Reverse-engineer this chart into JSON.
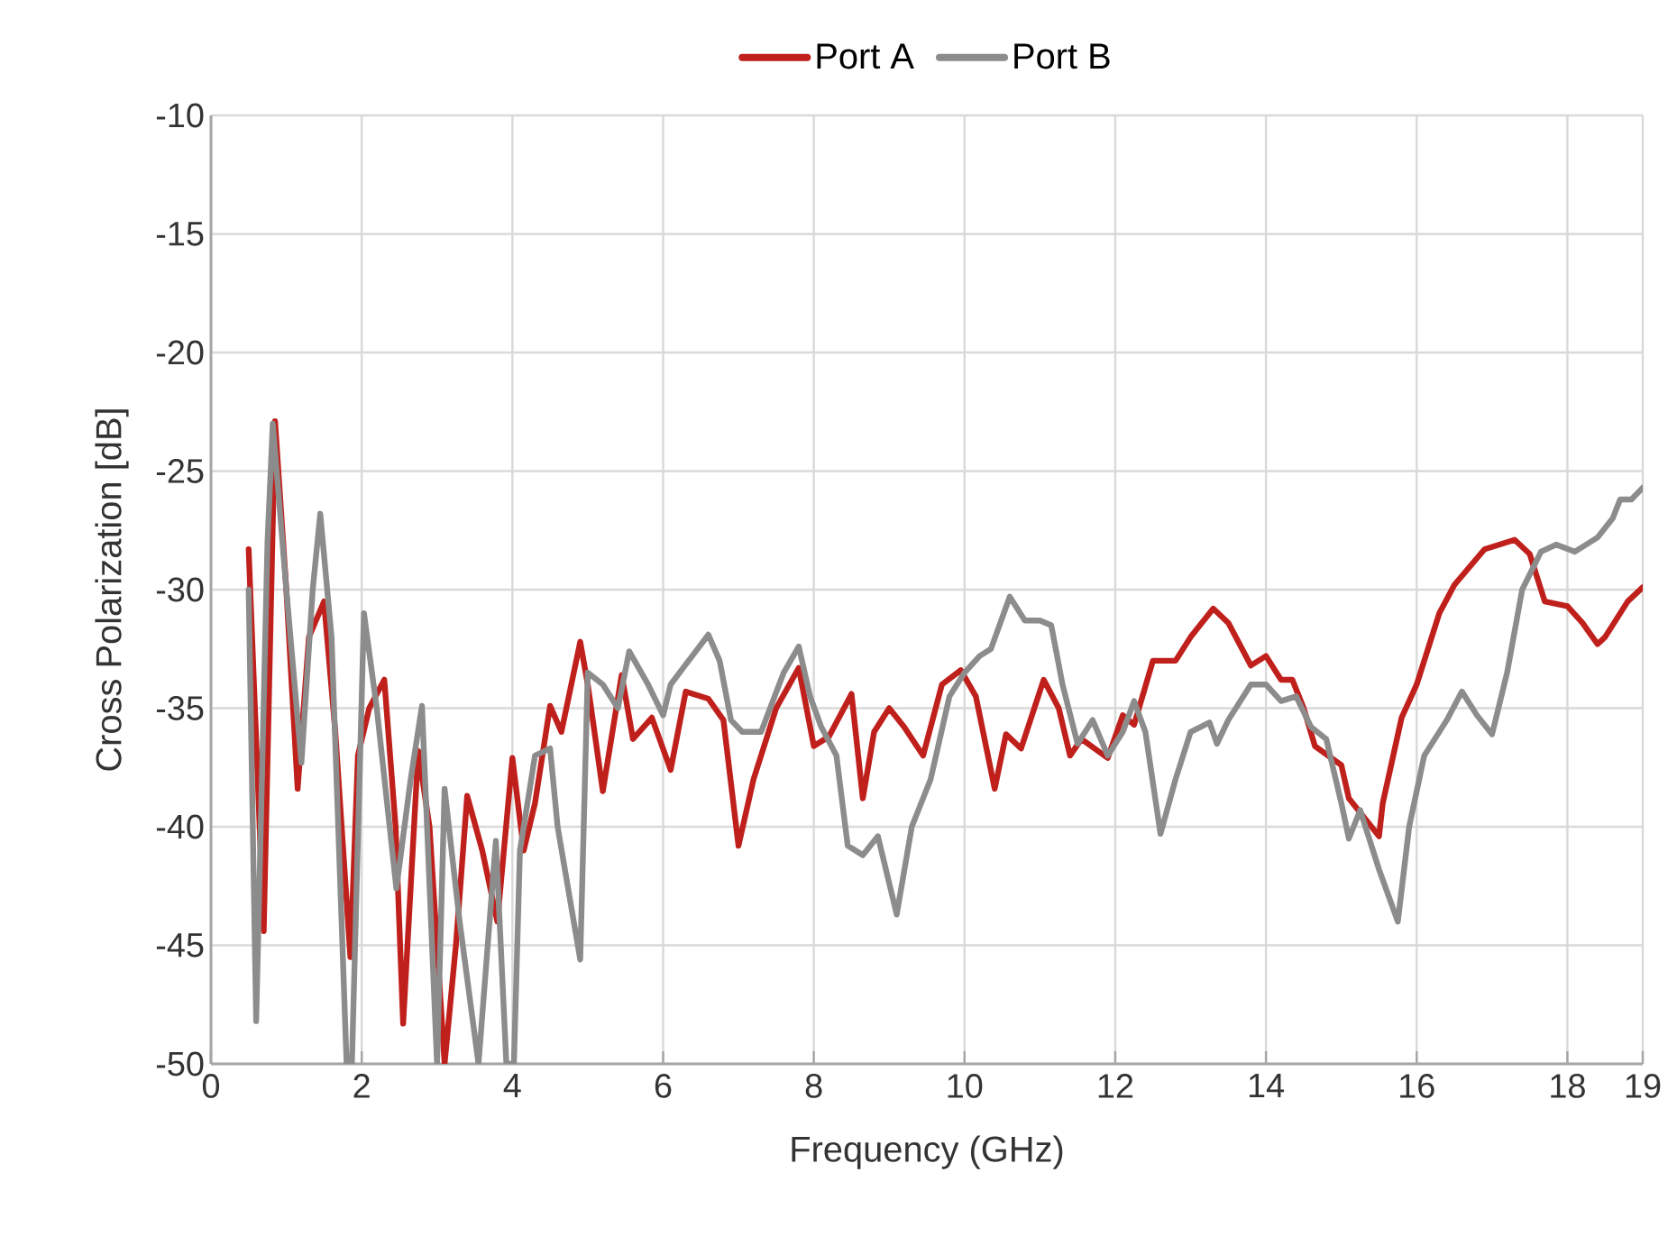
{
  "chart_data": {
    "type": "line",
    "xlabel": "Frequency (GHz)",
    "ylabel": "Cross Polarization [dB]",
    "xlim": [
      0,
      19
    ],
    "xticks": [
      0,
      2,
      4,
      6,
      8,
      10,
      12,
      14,
      16,
      18,
      19
    ],
    "ylim": [
      -50,
      -10
    ],
    "yticks": [
      -50,
      -45,
      -40,
      -35,
      -30,
      -25,
      -20,
      -15,
      -10
    ],
    "grid": true,
    "legend": "top",
    "line_style": "solid",
    "marker": "none",
    "series": [
      {
        "name": "Port  A",
        "color": "#c0201c",
        "x": [
          0.5,
          0.7,
          0.85,
          1.0,
          1.15,
          1.3,
          1.5,
          1.65,
          1.85,
          1.95,
          2.1,
          2.3,
          2.45,
          2.55,
          2.75,
          2.9,
          3.1,
          3.25,
          3.4,
          3.6,
          3.8,
          4.0,
          4.15,
          4.3,
          4.5,
          4.65,
          4.9,
          5.0,
          5.2,
          5.45,
          5.6,
          5.85,
          6.1,
          6.3,
          6.6,
          6.8,
          7.0,
          7.2,
          7.5,
          7.8,
          8.0,
          8.2,
          8.5,
          8.65,
          8.8,
          9.0,
          9.2,
          9.45,
          9.7,
          9.95,
          10.15,
          10.4,
          10.55,
          10.75,
          11.05,
          11.25,
          11.4,
          11.55,
          11.9,
          12.1,
          12.25,
          12.5,
          12.8,
          13.0,
          13.3,
          13.5,
          13.8,
          14.0,
          14.2,
          14.35,
          14.5,
          14.65,
          15.0,
          15.1,
          15.5,
          15.55,
          15.8,
          16.0,
          16.3,
          16.5,
          16.9,
          17.3,
          17.5,
          17.7,
          18.0,
          18.2,
          18.4,
          18.5,
          18.8,
          19.0
        ],
        "values": [
          -28.3,
          -44.4,
          -22.9,
          -30,
          -38.4,
          -32,
          -30.5,
          -36,
          -45.5,
          -37,
          -35,
          -33.8,
          -40,
          -48.3,
          -36.8,
          -40,
          -50,
          -45,
          -38.7,
          -41,
          -44,
          -37.1,
          -41,
          -39,
          -34.9,
          -36,
          -32.2,
          -34,
          -38.5,
          -33.6,
          -36.3,
          -35.4,
          -37.6,
          -34.3,
          -34.6,
          -35.5,
          -40.8,
          -38,
          -35,
          -33.3,
          -36.6,
          -36.2,
          -34.4,
          -38.8,
          -36,
          -35,
          -35.8,
          -37,
          -34,
          -33.4,
          -34.5,
          -38.4,
          -36.1,
          -36.7,
          -33.8,
          -35,
          -37,
          -36.3,
          -37.1,
          -35.3,
          -35.7,
          -33,
          -33,
          -32,
          -30.8,
          -31.4,
          -33.2,
          -32.8,
          -33.8,
          -33.8,
          -35,
          -36.6,
          -37.4,
          -38.8,
          -40.4,
          -39,
          -35.4,
          -34,
          -31,
          -29.8,
          -28.3,
          -27.9,
          -28.5,
          -30.5,
          -30.7,
          -31.4,
          -32.3,
          -32,
          -30.5,
          -29.9
        ]
      },
      {
        "name": "Port  B",
        "color": "#8c8c8c",
        "x": [
          0.5,
          0.6,
          0.75,
          0.82,
          1.0,
          1.2,
          1.35,
          1.45,
          1.6,
          1.8,
          1.87,
          2.03,
          2.2,
          2.46,
          2.65,
          2.8,
          3.0,
          3.1,
          3.3,
          3.55,
          3.78,
          3.92,
          4.02,
          4.1,
          4.3,
          4.5,
          4.6,
          4.9,
          5.0,
          5.2,
          5.4,
          5.55,
          5.8,
          6.0,
          6.1,
          6.6,
          6.75,
          6.9,
          7.05,
          7.3,
          7.6,
          7.8,
          7.95,
          8.1,
          8.3,
          8.45,
          8.65,
          8.85,
          9.1,
          9.3,
          9.55,
          9.8,
          10.0,
          10.2,
          10.35,
          10.6,
          10.8,
          11.0,
          11.15,
          11.3,
          11.5,
          11.7,
          11.9,
          12.1,
          12.25,
          12.4,
          12.6,
          12.8,
          13.0,
          13.25,
          13.35,
          13.5,
          13.8,
          14.0,
          14.2,
          14.4,
          14.6,
          14.8,
          15.0,
          15.1,
          15.25,
          15.5,
          15.75,
          15.9,
          16.1,
          16.4,
          16.6,
          16.8,
          17.0,
          17.2,
          17.4,
          17.65,
          17.85,
          18.1,
          18.4,
          18.6,
          18.7,
          18.85,
          19.0
        ],
        "values": [
          -30,
          -48.2,
          -28,
          -23,
          -30,
          -37.3,
          -30,
          -26.8,
          -32,
          -50,
          -50,
          -31,
          -35,
          -42.6,
          -38,
          -34.9,
          -50,
          -38.4,
          -44,
          -50,
          -40.6,
          -50,
          -50,
          -41,
          -37,
          -36.7,
          -40,
          -45.6,
          -33.5,
          -34,
          -35,
          -32.6,
          -34,
          -35.3,
          -34,
          -31.9,
          -33,
          -35.5,
          -36,
          -36,
          -33.5,
          -32.4,
          -34.5,
          -35.8,
          -37,
          -40.8,
          -41.2,
          -40.4,
          -43.7,
          -40,
          -38,
          -34.5,
          -33.5,
          -32.8,
          -32.5,
          -30.3,
          -31.3,
          -31.3,
          -31.5,
          -34,
          -36.5,
          -35.5,
          -37,
          -36,
          -34.7,
          -36,
          -40.3,
          -38,
          -36,
          -35.6,
          -36.5,
          -35.5,
          -34,
          -34,
          -34.7,
          -34.5,
          -35.8,
          -36.3,
          -39,
          -40.5,
          -39.3,
          -41.8,
          -44,
          -40,
          -37,
          -35.5,
          -34.3,
          -35.3,
          -36.1,
          -33.5,
          -30,
          -28.4,
          -28.1,
          -28.4,
          -27.8,
          -27,
          -26.2,
          -26.2,
          -25.7
        ]
      }
    ]
  }
}
